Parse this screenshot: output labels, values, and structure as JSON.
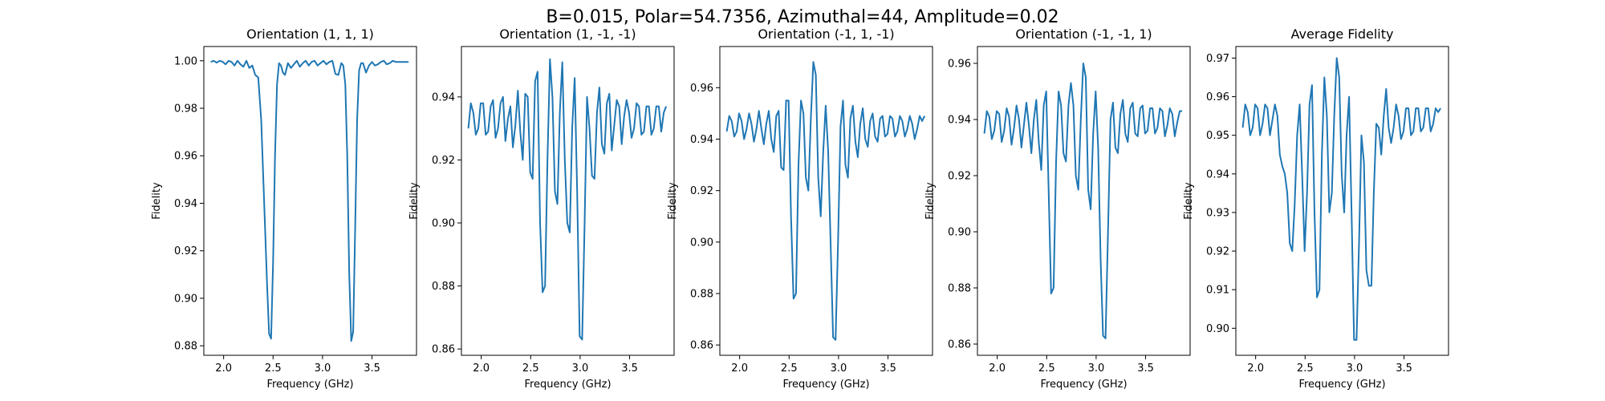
{
  "figure": {
    "suptitle": "B=0.015, Polar=54.7356, Azimuthal=44, Amplitude=0.02"
  },
  "chart_data": [
    {
      "type": "line",
      "title": "Orientation (1, 1, 1)",
      "xlabel": "Frequency (GHz)",
      "ylabel": "Fidelity",
      "xlim": [
        1.8,
        3.95
      ],
      "ylim": [
        0.876,
        1.006
      ],
      "xticks": [
        2.0,
        2.5,
        3.0,
        3.5
      ],
      "xtick_labels": [
        "2.0",
        "2.5",
        "3.0",
        "3.5"
      ],
      "yticks": [
        0.88,
        0.9,
        0.92,
        0.94,
        0.96,
        0.98,
        1.0
      ],
      "ytick_labels": [
        "0.88",
        "0.90",
        "0.92",
        "0.94",
        "0.96",
        "0.98",
        "1.00"
      ],
      "color": "#1f77b4",
      "series": [
        {
          "x": [
            1.87,
            1.9,
            1.93,
            1.96,
            1.99,
            2.02,
            2.05,
            2.08,
            2.11,
            2.14,
            2.17,
            2.2,
            2.23,
            2.26,
            2.29,
            2.32,
            2.35,
            2.38,
            2.41,
            2.44,
            2.46,
            2.48,
            2.5,
            2.52,
            2.54,
            2.56,
            2.58,
            2.6,
            2.62,
            2.65,
            2.68,
            2.71,
            2.74,
            2.77,
            2.8,
            2.83,
            2.86,
            2.89,
            2.92,
            2.95,
            2.98,
            3.01,
            3.04,
            3.07,
            3.1,
            3.13,
            3.16,
            3.19,
            3.21,
            3.23,
            3.25,
            3.27,
            3.29,
            3.31,
            3.33,
            3.35,
            3.37,
            3.39,
            3.41,
            3.44,
            3.47,
            3.5,
            3.53,
            3.56,
            3.59,
            3.62,
            3.65,
            3.68,
            3.71,
            3.74,
            3.77,
            3.8,
            3.83,
            3.87
          ],
          "y": [
            0.9995,
            1.0,
            0.9992,
            1.0,
            0.9996,
            0.9985,
            1.0,
            0.9995,
            0.998,
            1.0,
            0.9985,
            0.9975,
            1.0,
            0.997,
            0.998,
            0.994,
            0.993,
            0.975,
            0.94,
            0.905,
            0.885,
            0.883,
            0.915,
            0.96,
            0.99,
            0.999,
            0.998,
            0.995,
            0.994,
            0.999,
            0.997,
            0.9985,
            1.0,
            0.9975,
            0.999,
            1.0,
            0.998,
            0.9995,
            1.0,
            0.998,
            0.999,
            1.0,
            0.9985,
            0.9995,
            1.0,
            0.9945,
            0.994,
            0.999,
            0.998,
            0.99,
            0.96,
            0.91,
            0.882,
            0.886,
            0.93,
            0.975,
            0.996,
            0.999,
            0.999,
            0.995,
            0.998,
            0.9995,
            0.998,
            0.9985,
            0.9995,
            1.0,
            0.9985,
            0.999,
            1.0,
            0.9995,
            0.9995,
            0.9995,
            0.9995,
            0.9995
          ]
        }
      ]
    },
    {
      "type": "line",
      "title": "Orientation (1, -1, -1)",
      "xlabel": "Frequency (GHz)",
      "ylabel": "Fidelity",
      "xlim": [
        1.8,
        3.95
      ],
      "ylim": [
        0.858,
        0.956
      ],
      "xticks": [
        2.0,
        2.5,
        3.0,
        3.5
      ],
      "xtick_labels": [
        "2.0",
        "2.5",
        "3.0",
        "3.5"
      ],
      "yticks": [
        0.86,
        0.88,
        0.9,
        0.92,
        0.94
      ],
      "ytick_labels": [
        "0.86",
        "0.88",
        "0.90",
        "0.92",
        "0.94"
      ],
      "color": "#1f77b4",
      "series": [
        {
          "x": [
            1.87,
            1.895,
            1.92,
            1.945,
            1.97,
            1.995,
            2.02,
            2.045,
            2.07,
            2.095,
            2.12,
            2.145,
            2.17,
            2.195,
            2.22,
            2.245,
            2.27,
            2.295,
            2.32,
            2.345,
            2.37,
            2.395,
            2.42,
            2.445,
            2.47,
            2.495,
            2.52,
            2.545,
            2.57,
            2.595,
            2.62,
            2.645,
            2.67,
            2.695,
            2.72,
            2.745,
            2.77,
            2.795,
            2.82,
            2.845,
            2.87,
            2.895,
            2.92,
            2.945,
            2.97,
            2.995,
            3.02,
            3.045,
            3.07,
            3.095,
            3.12,
            3.145,
            3.17,
            3.195,
            3.22,
            3.245,
            3.27,
            3.295,
            3.32,
            3.345,
            3.37,
            3.395,
            3.42,
            3.445,
            3.47,
            3.495,
            3.52,
            3.545,
            3.57,
            3.595,
            3.62,
            3.645,
            3.67,
            3.695,
            3.72,
            3.745,
            3.77,
            3.795,
            3.82,
            3.845,
            3.87
          ],
          "y": [
            0.93,
            0.938,
            0.935,
            0.928,
            0.93,
            0.938,
            0.938,
            0.928,
            0.929,
            0.937,
            0.939,
            0.927,
            0.93,
            0.938,
            0.94,
            0.926,
            0.933,
            0.937,
            0.924,
            0.931,
            0.942,
            0.929,
            0.92,
            0.941,
            0.94,
            0.916,
            0.914,
            0.945,
            0.948,
            0.9,
            0.878,
            0.88,
            0.92,
            0.952,
            0.94,
            0.91,
            0.906,
            0.935,
            0.951,
            0.92,
            0.9,
            0.897,
            0.93,
            0.946,
            0.91,
            0.864,
            0.863,
            0.9,
            0.94,
            0.93,
            0.915,
            0.914,
            0.935,
            0.943,
            0.925,
            0.922,
            0.938,
            0.941,
            0.923,
            0.931,
            0.939,
            0.937,
            0.925,
            0.934,
            0.939,
            0.935,
            0.927,
            0.93,
            0.938,
            0.937,
            0.928,
            0.929,
            0.937,
            0.937,
            0.928,
            0.93,
            0.937,
            0.937,
            0.929,
            0.935,
            0.937
          ]
        }
      ]
    },
    {
      "type": "line",
      "title": "Orientation (-1, 1, -1)",
      "xlabel": "Frequency (GHz)",
      "ylabel": "Fidelity",
      "xlim": [
        1.8,
        3.95
      ],
      "ylim": [
        0.856,
        0.976
      ],
      "xticks": [
        2.0,
        2.5,
        3.0,
        3.5
      ],
      "xtick_labels": [
        "2.0",
        "2.5",
        "3.0",
        "3.5"
      ],
      "yticks": [
        0.86,
        0.88,
        0.9,
        0.92,
        0.94,
        0.96
      ],
      "ytick_labels": [
        "0.86",
        "0.88",
        "0.90",
        "0.92",
        "0.94",
        "0.96"
      ],
      "color": "#1f77b4",
      "series": [
        {
          "x": [
            1.87,
            1.895,
            1.92,
            1.945,
            1.97,
            1.995,
            2.02,
            2.045,
            2.07,
            2.095,
            2.12,
            2.145,
            2.17,
            2.195,
            2.22,
            2.245,
            2.27,
            2.295,
            2.32,
            2.345,
            2.37,
            2.395,
            2.42,
            2.445,
            2.47,
            2.495,
            2.52,
            2.545,
            2.57,
            2.595,
            2.62,
            2.645,
            2.67,
            2.695,
            2.72,
            2.745,
            2.77,
            2.795,
            2.82,
            2.845,
            2.87,
            2.895,
            2.92,
            2.945,
            2.97,
            2.995,
            3.02,
            3.045,
            3.07,
            3.095,
            3.12,
            3.145,
            3.17,
            3.195,
            3.22,
            3.245,
            3.27,
            3.295,
            3.32,
            3.345,
            3.37,
            3.395,
            3.42,
            3.445,
            3.47,
            3.495,
            3.52,
            3.545,
            3.57,
            3.595,
            3.62,
            3.645,
            3.67,
            3.695,
            3.72,
            3.745,
            3.77,
            3.795,
            3.82,
            3.845,
            3.87
          ],
          "y": [
            0.943,
            0.949,
            0.947,
            0.941,
            0.943,
            0.95,
            0.947,
            0.94,
            0.944,
            0.95,
            0.946,
            0.939,
            0.944,
            0.951,
            0.944,
            0.938,
            0.946,
            0.951,
            0.94,
            0.935,
            0.949,
            0.951,
            0.929,
            0.928,
            0.955,
            0.955,
            0.91,
            0.878,
            0.88,
            0.93,
            0.955,
            0.95,
            0.925,
            0.92,
            0.948,
            0.97,
            0.965,
            0.925,
            0.91,
            0.935,
            0.953,
            0.935,
            0.9,
            0.863,
            0.862,
            0.9,
            0.945,
            0.955,
            0.93,
            0.925,
            0.948,
            0.953,
            0.939,
            0.933,
            0.946,
            0.952,
            0.94,
            0.937,
            0.947,
            0.95,
            0.941,
            0.939,
            0.948,
            0.949,
            0.941,
            0.942,
            0.949,
            0.948,
            0.941,
            0.943,
            0.949,
            0.947,
            0.941,
            0.944,
            0.949,
            0.946,
            0.94,
            0.944,
            0.949,
            0.947,
            0.949
          ]
        }
      ]
    },
    {
      "type": "line",
      "title": "Orientation (-1, -1, 1)",
      "xlabel": "Frequency (GHz)",
      "ylabel": "Fidelity",
      "xlim": [
        1.8,
        3.95
      ],
      "ylim": [
        0.856,
        0.966
      ],
      "xticks": [
        2.0,
        2.5,
        3.0,
        3.5
      ],
      "xtick_labels": [
        "2.0",
        "2.5",
        "3.0",
        "3.5"
      ],
      "yticks": [
        0.86,
        0.88,
        0.9,
        0.92,
        0.94,
        0.96
      ],
      "ytick_labels": [
        "0.86",
        "0.88",
        "0.90",
        "0.92",
        "0.94",
        "0.96"
      ],
      "color": "#1f77b4",
      "series": [
        {
          "x": [
            1.87,
            1.895,
            1.92,
            1.945,
            1.97,
            1.995,
            2.02,
            2.045,
            2.07,
            2.095,
            2.12,
            2.145,
            2.17,
            2.195,
            2.22,
            2.245,
            2.27,
            2.295,
            2.32,
            2.345,
            2.37,
            2.395,
            2.42,
            2.445,
            2.47,
            2.495,
            2.52,
            2.545,
            2.57,
            2.595,
            2.62,
            2.645,
            2.67,
            2.695,
            2.72,
            2.745,
            2.77,
            2.795,
            2.82,
            2.845,
            2.87,
            2.895,
            2.92,
            2.945,
            2.97,
            2.995,
            3.02,
            3.045,
            3.07,
            3.095,
            3.12,
            3.145,
            3.17,
            3.195,
            3.22,
            3.245,
            3.27,
            3.295,
            3.32,
            3.345,
            3.37,
            3.395,
            3.42,
            3.445,
            3.47,
            3.495,
            3.52,
            3.545,
            3.57,
            3.595,
            3.62,
            3.645,
            3.67,
            3.695,
            3.72,
            3.745,
            3.77,
            3.795,
            3.82,
            3.845,
            3.87
          ],
          "y": [
            0.935,
            0.943,
            0.941,
            0.933,
            0.936,
            0.943,
            0.942,
            0.932,
            0.936,
            0.944,
            0.941,
            0.931,
            0.937,
            0.945,
            0.94,
            0.93,
            0.938,
            0.946,
            0.938,
            0.928,
            0.94,
            0.947,
            0.932,
            0.922,
            0.945,
            0.95,
            0.915,
            0.878,
            0.88,
            0.925,
            0.95,
            0.945,
            0.928,
            0.925,
            0.945,
            0.953,
            0.945,
            0.92,
            0.915,
            0.94,
            0.96,
            0.955,
            0.915,
            0.908,
            0.935,
            0.95,
            0.93,
            0.89,
            0.863,
            0.862,
            0.9,
            0.94,
            0.946,
            0.93,
            0.928,
            0.942,
            0.947,
            0.935,
            0.932,
            0.944,
            0.946,
            0.935,
            0.934,
            0.944,
            0.945,
            0.935,
            0.936,
            0.944,
            0.944,
            0.935,
            0.937,
            0.944,
            0.943,
            0.934,
            0.938,
            0.944,
            0.942,
            0.934,
            0.939,
            0.943,
            0.943
          ]
        }
      ]
    },
    {
      "type": "line",
      "title": "Average Fidelity",
      "xlabel": "Frequency (GHz)",
      "ylabel": "Fidelity",
      "xlim": [
        1.8,
        3.95
      ],
      "ylim": [
        0.893,
        0.973
      ],
      "xticks": [
        2.0,
        2.5,
        3.0,
        3.5
      ],
      "xtick_labels": [
        "2.0",
        "2.5",
        "3.0",
        "3.5"
      ],
      "yticks": [
        0.9,
        0.91,
        0.92,
        0.93,
        0.94,
        0.95,
        0.96,
        0.97
      ],
      "ytick_labels": [
        "0.90",
        "0.91",
        "0.92",
        "0.93",
        "0.94",
        "0.95",
        "0.96",
        "0.97"
      ],
      "color": "#1f77b4",
      "series": [
        {
          "x": [
            1.87,
            1.895,
            1.92,
            1.945,
            1.97,
            1.995,
            2.02,
            2.045,
            2.07,
            2.095,
            2.12,
            2.145,
            2.17,
            2.195,
            2.22,
            2.245,
            2.27,
            2.295,
            2.32,
            2.345,
            2.37,
            2.395,
            2.42,
            2.445,
            2.47,
            2.495,
            2.52,
            2.545,
            2.57,
            2.595,
            2.62,
            2.645,
            2.67,
            2.695,
            2.72,
            2.745,
            2.77,
            2.795,
            2.82,
            2.845,
            2.87,
            2.895,
            2.92,
            2.945,
            2.97,
            2.995,
            3.02,
            3.045,
            3.07,
            3.095,
            3.12,
            3.145,
            3.17,
            3.195,
            3.22,
            3.245,
            3.27,
            3.295,
            3.32,
            3.345,
            3.37,
            3.395,
            3.42,
            3.445,
            3.47,
            3.495,
            3.52,
            3.545,
            3.57,
            3.595,
            3.62,
            3.645,
            3.67,
            3.695,
            3.72,
            3.745,
            3.77,
            3.795,
            3.82,
            3.845,
            3.87
          ],
          "y": [
            0.952,
            0.958,
            0.956,
            0.95,
            0.952,
            0.958,
            0.957,
            0.95,
            0.953,
            0.958,
            0.957,
            0.95,
            0.954,
            0.958,
            0.955,
            0.945,
            0.942,
            0.94,
            0.935,
            0.922,
            0.92,
            0.932,
            0.95,
            0.958,
            0.94,
            0.92,
            0.935,
            0.958,
            0.963,
            0.93,
            0.908,
            0.91,
            0.945,
            0.965,
            0.955,
            0.93,
            0.935,
            0.955,
            0.97,
            0.965,
            0.94,
            0.93,
            0.95,
            0.96,
            0.93,
            0.897,
            0.897,
            0.922,
            0.95,
            0.943,
            0.915,
            0.911,
            0.911,
            0.935,
            0.953,
            0.952,
            0.945,
            0.955,
            0.962,
            0.952,
            0.948,
            0.952,
            0.958,
            0.955,
            0.949,
            0.951,
            0.957,
            0.957,
            0.95,
            0.951,
            0.957,
            0.957,
            0.951,
            0.952,
            0.957,
            0.957,
            0.951,
            0.953,
            0.957,
            0.956,
            0.957
          ]
        }
      ]
    }
  ]
}
